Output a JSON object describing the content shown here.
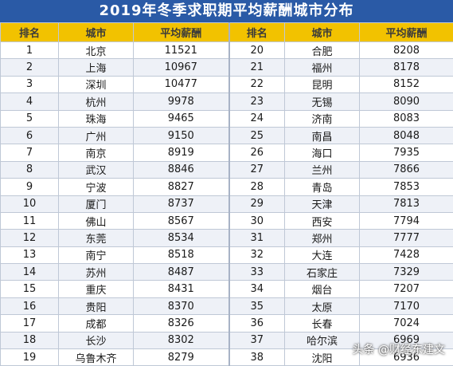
{
  "title": "2019年冬季求职期平均薪酬城市分布",
  "headers": [
    "排名",
    "城市",
    "平均薪酬",
    "排名",
    "城市",
    "平均薪酬"
  ],
  "rows": [
    [
      "1",
      "北京",
      "11521",
      "20",
      "合肥",
      "8208"
    ],
    [
      "2",
      "上海",
      "10967",
      "21",
      "福州",
      "8178"
    ],
    [
      "3",
      "深圳",
      "10477",
      "22",
      "昆明",
      "8152"
    ],
    [
      "4",
      "杭州",
      "9978",
      "23",
      "无锡",
      "8090"
    ],
    [
      "5",
      "珠海",
      "9465",
      "24",
      "济南",
      "8083"
    ],
    [
      "6",
      "广州",
      "9150",
      "25",
      "南昌",
      "8048"
    ],
    [
      "7",
      "南京",
      "8919",
      "26",
      "海口",
      "7935"
    ],
    [
      "8",
      "武汉",
      "8846",
      "27",
      "兰州",
      "7866"
    ],
    [
      "9",
      "宁波",
      "8827",
      "28",
      "青岛",
      "7853"
    ],
    [
      "10",
      "厦门",
      "8737",
      "29",
      "天津",
      "7813"
    ],
    [
      "11",
      "佛山",
      "8567",
      "30",
      "西安",
      "7794"
    ],
    [
      "12",
      "东莞",
      "8534",
      "31",
      "郑州",
      "7777"
    ],
    [
      "13",
      "南宁",
      "8518",
      "32",
      "大连",
      "7428"
    ],
    [
      "14",
      "苏州",
      "8487",
      "33",
      "石家庄",
      "7329"
    ],
    [
      "15",
      "重庆",
      "8431",
      "34",
      "烟台",
      "7207"
    ],
    [
      "16",
      "贵阳",
      "8370",
      "35",
      "太原",
      "7170"
    ],
    [
      "17",
      "成都",
      "8326",
      "36",
      "长春",
      "7024"
    ],
    [
      "18",
      "长沙",
      "8302",
      "37",
      "哈尔滨",
      "6969"
    ],
    [
      "19",
      "乌鲁木齐",
      "8279",
      "38",
      "沈阳",
      "6936"
    ]
  ],
  "watermark": "头条 @财经东建文",
  "colors": {
    "title_bg": "#2a5aa6",
    "header_bg": "#f2c200",
    "row_alt_bg": "#eef1f7"
  }
}
